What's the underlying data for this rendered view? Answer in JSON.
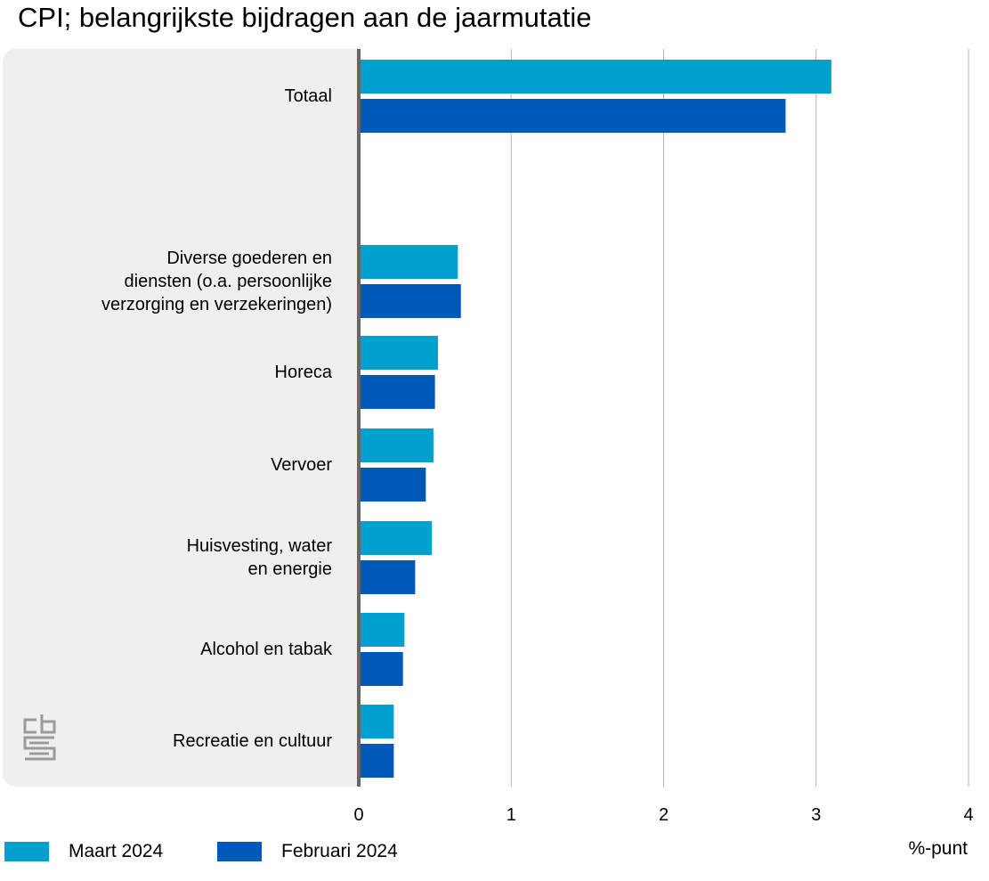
{
  "title": "CPI; belangrijkste bijdragen aan de jaarmutatie",
  "unit_label": "%-punt",
  "colors": {
    "maart": "#00a1cd",
    "februari": "#0058b8",
    "panel": "#efefef",
    "grid": "#b4b4b4",
    "axis": "#666666"
  },
  "logo": "cbs-logo",
  "chart_data": {
    "type": "bar",
    "orientation": "horizontal",
    "categories": [
      "Totaal",
      "",
      "Diverse goederen en diensten (o.a. persoonlijke verzorging en verzekeringen)",
      "Horeca",
      "Vervoer",
      "Huisvesting, water en energie",
      "Alcohol en tabak",
      "Recreatie en cultuur"
    ],
    "category_lines": [
      [
        "Totaal"
      ],
      [],
      [
        "Diverse goederen en",
        "diensten (o.a. persoonlijke",
        "verzorging en verzekeringen)"
      ],
      [
        "Horeca"
      ],
      [
        "Vervoer"
      ],
      [
        "Huisvesting, water",
        "en energie"
      ],
      [
        "Alcohol en tabak"
      ],
      [
        "Recreatie en cultuur"
      ]
    ],
    "series": [
      {
        "name": "Maart 2024",
        "values": [
          3.1,
          null,
          0.65,
          0.52,
          0.49,
          0.48,
          0.3,
          0.23
        ]
      },
      {
        "name": "Februari 2024",
        "values": [
          2.8,
          null,
          0.67,
          0.5,
          0.44,
          0.37,
          0.29,
          0.23
        ]
      }
    ],
    "xlim": [
      0,
      4
    ],
    "xticks": [
      0,
      1,
      2,
      3,
      4
    ],
    "xlabel": "%-punt",
    "grid": true,
    "legend_position": "bottom-left"
  }
}
